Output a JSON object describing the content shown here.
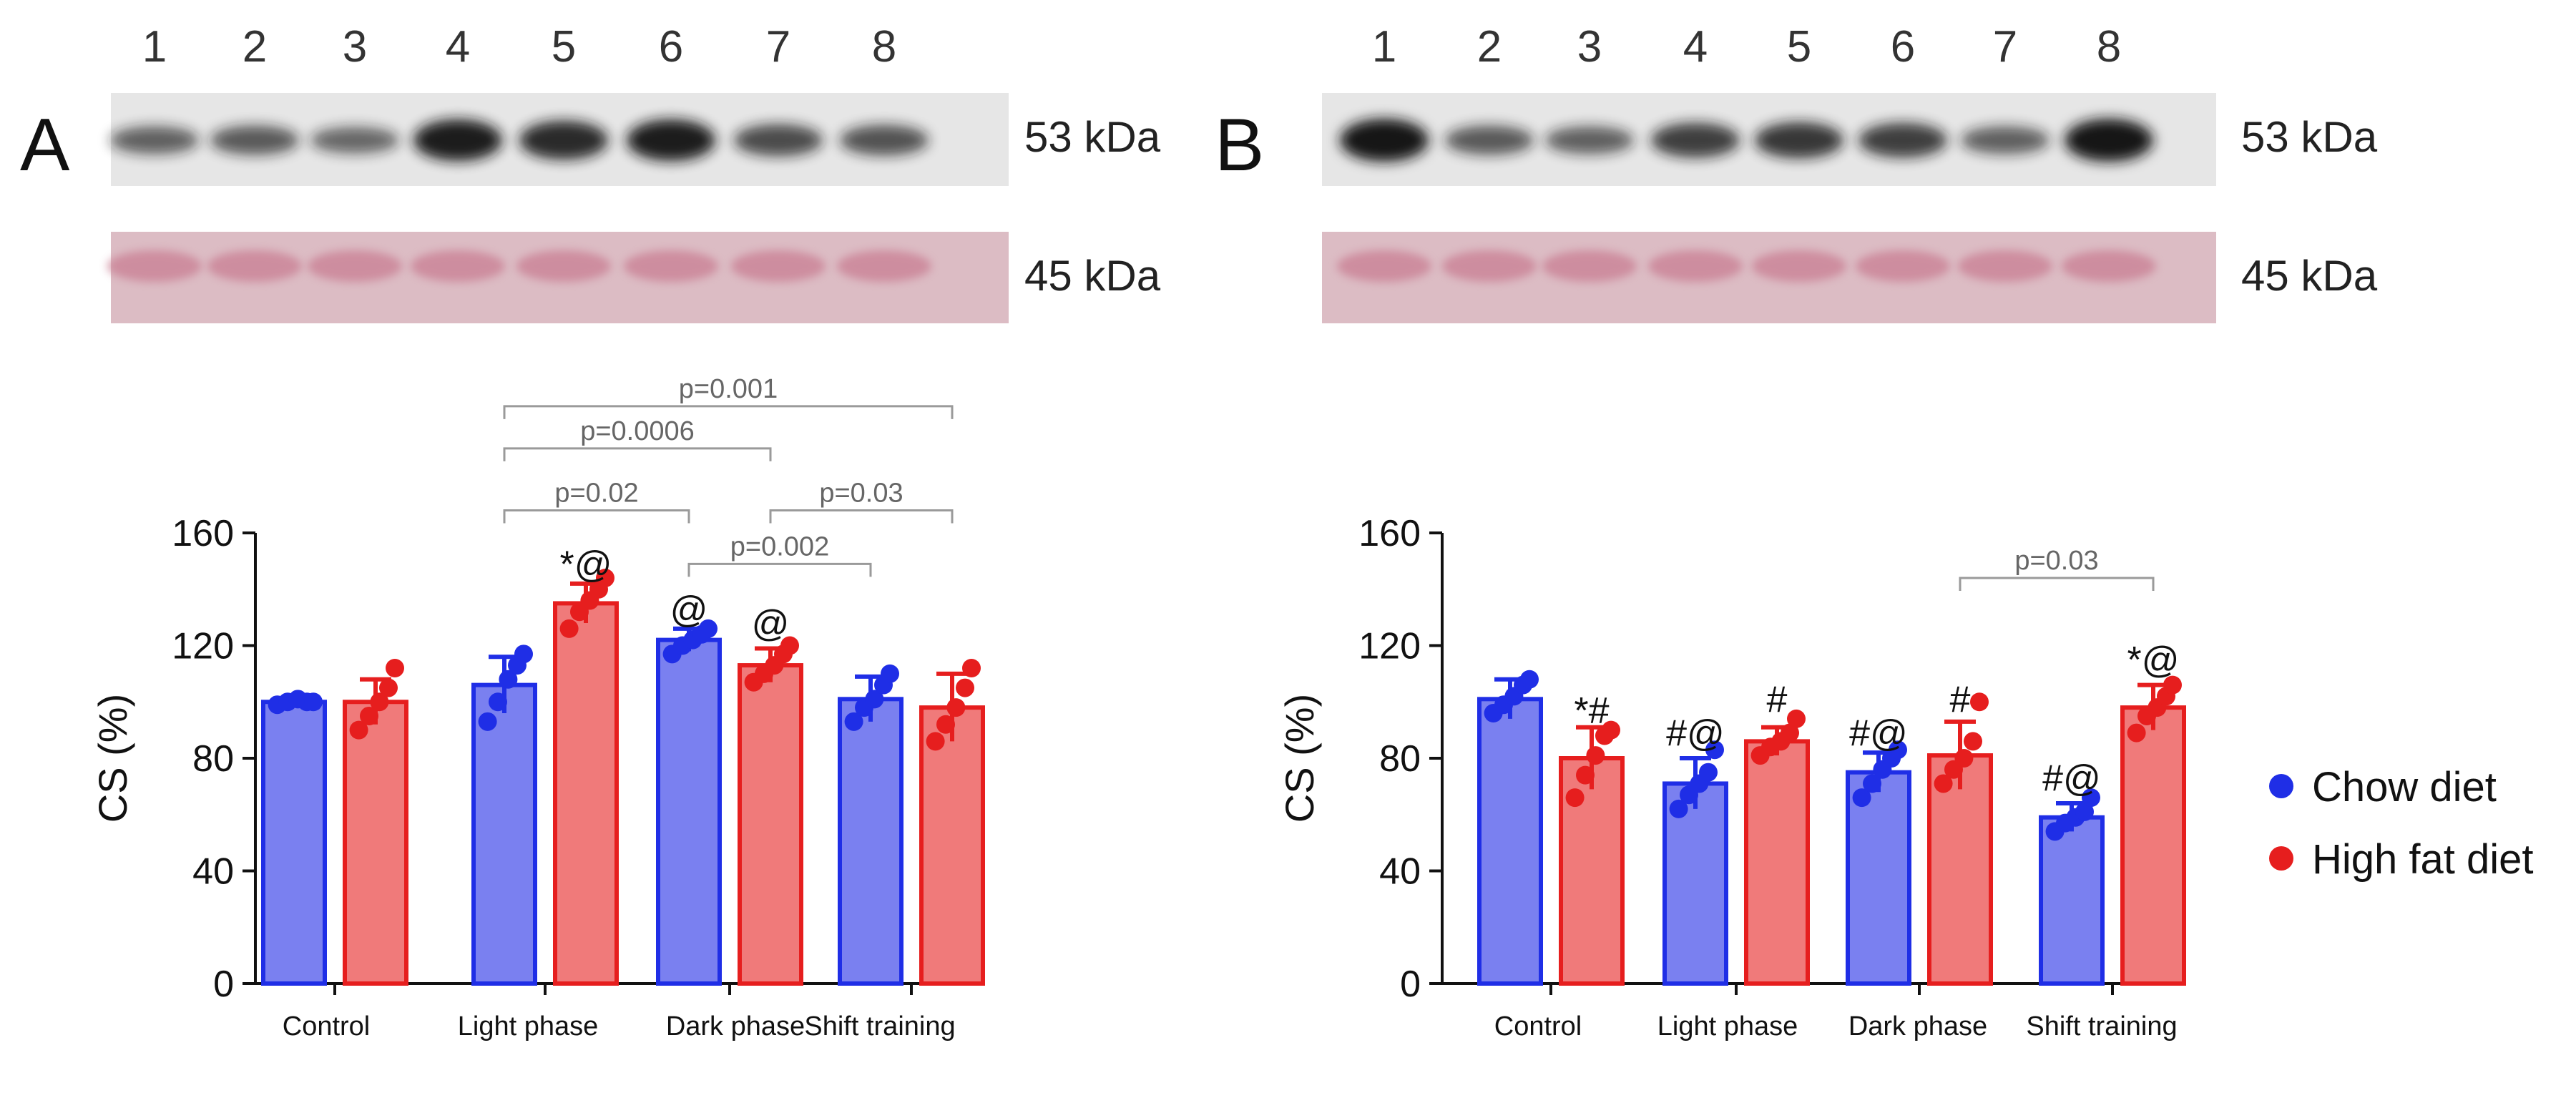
{
  "lane_numbers": [
    "1",
    "2",
    "3",
    "4",
    "5",
    "6",
    "7",
    "8"
  ],
  "legend": {
    "chow": {
      "label": "Chow diet",
      "color": "#1f2ee6"
    },
    "hfd": {
      "label": "High fat diet",
      "color": "#e61e1e"
    }
  },
  "colors": {
    "chow_fill": "#7a80f0",
    "hfd_fill": "#f07a7a",
    "bracket": "#9a9a9a",
    "blot_bg": "#e6e6e6",
    "band": "#141414",
    "ponceau_bg": "#dcbcc4",
    "ponceau_band": "#c97e93"
  },
  "chart_data": [
    {
      "type": "bar",
      "panel_label": "A",
      "blot_labels": [
        "53 kDa",
        "45 kDa"
      ],
      "band_intensity": [
        0.45,
        0.5,
        0.4,
        0.95,
        0.85,
        0.95,
        0.6,
        0.55
      ],
      "categories": [
        "Control",
        "Light phase",
        "Dark phase",
        "Shift training"
      ],
      "ylabel": "CS (%)",
      "ylim": [
        0,
        160
      ],
      "yticks": [
        "0",
        "40",
        "80",
        "120",
        "160"
      ],
      "series": [
        {
          "name": "Chow diet",
          "values": [
            100,
            106,
            122,
            101
          ],
          "errors": [
            1,
            10,
            4,
            8
          ],
          "points": [
            [
              99,
              100,
              101,
              100,
              100
            ],
            [
              93,
              100,
              108,
              113,
              117
            ],
            [
              117,
              120,
              122,
              124,
              126
            ],
            [
              93,
              98,
              101,
              106,
              110
            ]
          ]
        },
        {
          "name": "High fat diet",
          "values": [
            100,
            135,
            113,
            98
          ],
          "errors": [
            8,
            7,
            6,
            12
          ],
          "points": [
            [
              90,
              95,
              100,
              105,
              112
            ],
            [
              126,
              132,
              136,
              140,
              144
            ],
            [
              107,
              110,
              113,
              117,
              120
            ],
            [
              86,
              92,
              98,
              105,
              112
            ]
          ]
        }
      ],
      "annotations": [
        {
          "text": "*@",
          "category": 1,
          "series": 1,
          "y": 149
        },
        {
          "text": "@",
          "category": 2,
          "series": 0,
          "y": 133
        },
        {
          "text": "@",
          "category": 2,
          "series": 1,
          "y": 128
        }
      ],
      "brackets": [
        {
          "label": "p=0.001",
          "from": [
            1,
            0
          ],
          "to": [
            3,
            1
          ],
          "y": 205
        },
        {
          "label": "p=0.0006",
          "from": [
            1,
            0
          ],
          "to": [
            2,
            1
          ],
          "y": 190
        },
        {
          "label": "p=0.02",
          "from": [
            1,
            0
          ],
          "to": [
            2,
            0
          ],
          "y": 168
        },
        {
          "label": "p=0.03",
          "from": [
            2,
            1
          ],
          "to": [
            3,
            1
          ],
          "y": 168
        },
        {
          "label": "p=0.002",
          "from": [
            2,
            0
          ],
          "to": [
            3,
            0
          ],
          "y": 149
        }
      ]
    },
    {
      "type": "bar",
      "panel_label": "B",
      "blot_labels": [
        "53 kDa",
        "45 kDa"
      ],
      "band_intensity": [
        1.0,
        0.5,
        0.45,
        0.7,
        0.75,
        0.7,
        0.45,
        1.0
      ],
      "categories": [
        "Control",
        "Light phase",
        "Dark phase",
        "Shift training"
      ],
      "ylabel": "CS (%)",
      "ylim": [
        0,
        160
      ],
      "yticks": [
        "0",
        "40",
        "80",
        "120",
        "160"
      ],
      "series": [
        {
          "name": "Chow diet",
          "values": [
            101,
            71,
            75,
            59
          ],
          "errors": [
            7,
            9,
            7,
            5
          ],
          "points": [
            [
              96,
              99,
              102,
              106,
              108
            ],
            [
              62,
              67,
              71,
              75,
              83
            ],
            [
              66,
              71,
              76,
              80,
              83
            ],
            [
              54,
              57,
              59,
              61,
              66
            ]
          ]
        },
        {
          "name": "High fat diet",
          "values": [
            80,
            86,
            81,
            98
          ],
          "errors": [
            11,
            5,
            12,
            8
          ],
          "points": [
            [
              66,
              74,
              81,
              88,
              90
            ],
            [
              81,
              84,
              86,
              89,
              94
            ],
            [
              71,
              76,
              80,
              86,
              100
            ],
            [
              89,
              95,
              98,
              102,
              106
            ]
          ]
        }
      ],
      "annotations": [
        {
          "text": "*#",
          "category": 0,
          "series": 1,
          "y": 97
        },
        {
          "text": "#@",
          "category": 1,
          "series": 0,
          "y": 89
        },
        {
          "text": "#",
          "category": 1,
          "series": 1,
          "y": 101
        },
        {
          "text": "#@",
          "category": 2,
          "series": 0,
          "y": 89
        },
        {
          "text": "#",
          "category": 2,
          "series": 1,
          "y": 101
        },
        {
          "text": "#@",
          "category": 3,
          "series": 0,
          "y": 73
        },
        {
          "text": "*@",
          "category": 3,
          "series": 1,
          "y": 115
        }
      ],
      "brackets": [
        {
          "label": "p=0.03",
          "from": [
            2,
            1
          ],
          "to": [
            3,
            1
          ],
          "y": 144
        }
      ]
    }
  ]
}
